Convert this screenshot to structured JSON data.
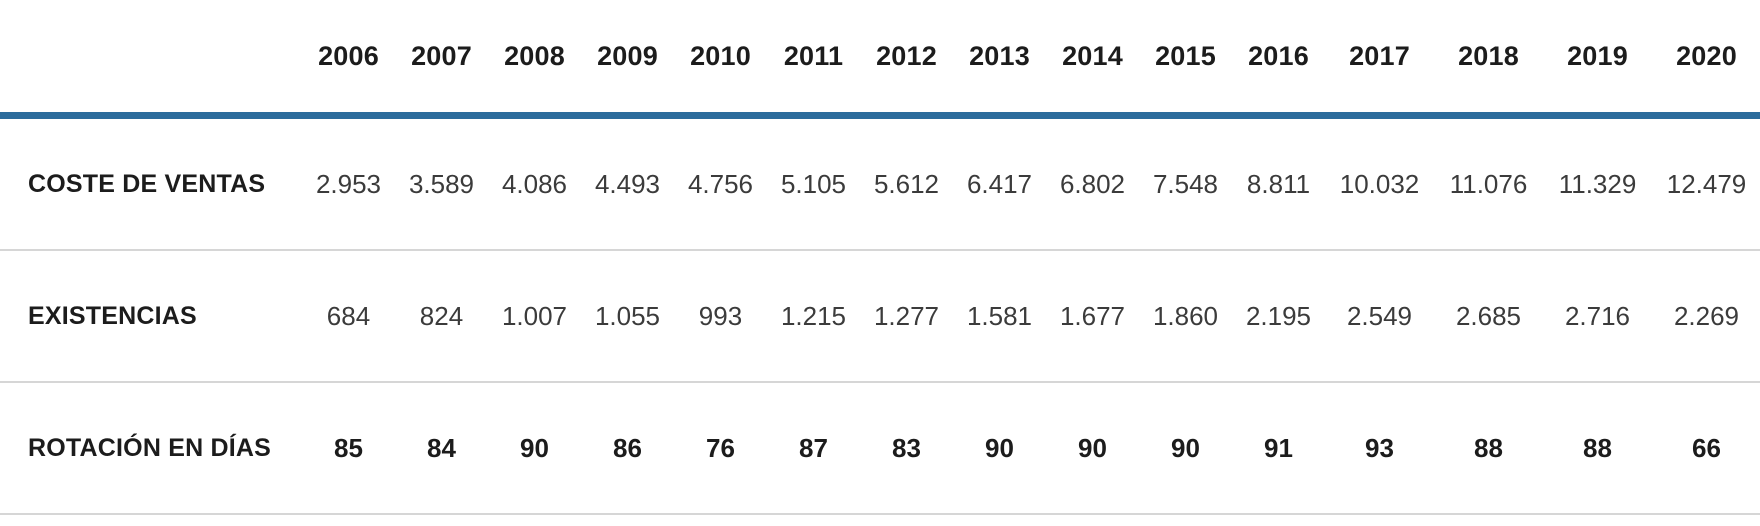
{
  "table": {
    "corner_label": "",
    "years": [
      "2006",
      "2007",
      "2008",
      "2009",
      "2010",
      "2011",
      "2012",
      "2013",
      "2014",
      "2015",
      "2016",
      "2017",
      "2018",
      "2019",
      "2020"
    ],
    "rows": [
      {
        "label": "COSTE DE VENTAS",
        "bold_values": false,
        "values": [
          "2.953",
          "3.589",
          "4.086",
          "4.493",
          "4.756",
          "5.105",
          "5.612",
          "6.417",
          "6.802",
          "7.548",
          "8.811",
          "10.032",
          "11.076",
          "11.329",
          "12.479"
        ]
      },
      {
        "label": "EXISTENCIAS",
        "bold_values": false,
        "values": [
          "684",
          "824",
          "1.007",
          "1.055",
          "993",
          "1.215",
          "1.277",
          "1.581",
          "1.677",
          "1.860",
          "2.195",
          "2.549",
          "2.685",
          "2.716",
          "2.269"
        ]
      },
      {
        "label": "ROTACIÓN EN DÍAS",
        "bold_values": true,
        "values": [
          "85",
          "84",
          "90",
          "86",
          "76",
          "87",
          "83",
          "90",
          "90",
          "90",
          "91",
          "93",
          "88",
          "88",
          "66"
        ]
      }
    ]
  },
  "colors": {
    "header_rule_blue": "#2c6c9c",
    "row_divider_gray": "#d6d6d6",
    "text_strong": "#1c1c1c",
    "text_value": "#3b3b3b"
  },
  "chart_data": {
    "type": "table",
    "title": "",
    "categories": [
      2006,
      2007,
      2008,
      2009,
      2010,
      2011,
      2012,
      2013,
      2014,
      2015,
      2016,
      2017,
      2018,
      2019,
      2020
    ],
    "series": [
      {
        "name": "COSTE DE VENTAS",
        "values": [
          2953,
          3589,
          4086,
          4493,
          4756,
          5105,
          5612,
          6417,
          6802,
          7548,
          8811,
          10032,
          11076,
          11329,
          12479
        ]
      },
      {
        "name": "EXISTENCIAS",
        "values": [
          684,
          824,
          1007,
          1055,
          993,
          1215,
          1277,
          1581,
          1677,
          1860,
          2195,
          2549,
          2685,
          2716,
          2269
        ]
      },
      {
        "name": "ROTACIÓN EN DÍAS",
        "values": [
          85,
          84,
          90,
          86,
          76,
          87,
          83,
          90,
          90,
          90,
          91,
          93,
          88,
          88,
          66
        ]
      }
    ],
    "notes": "Numbers use Spanish thousands separator '.' (e.g. 2.953 = 2953). Grid: thick blue rule under year header, light gray rules between rows."
  }
}
